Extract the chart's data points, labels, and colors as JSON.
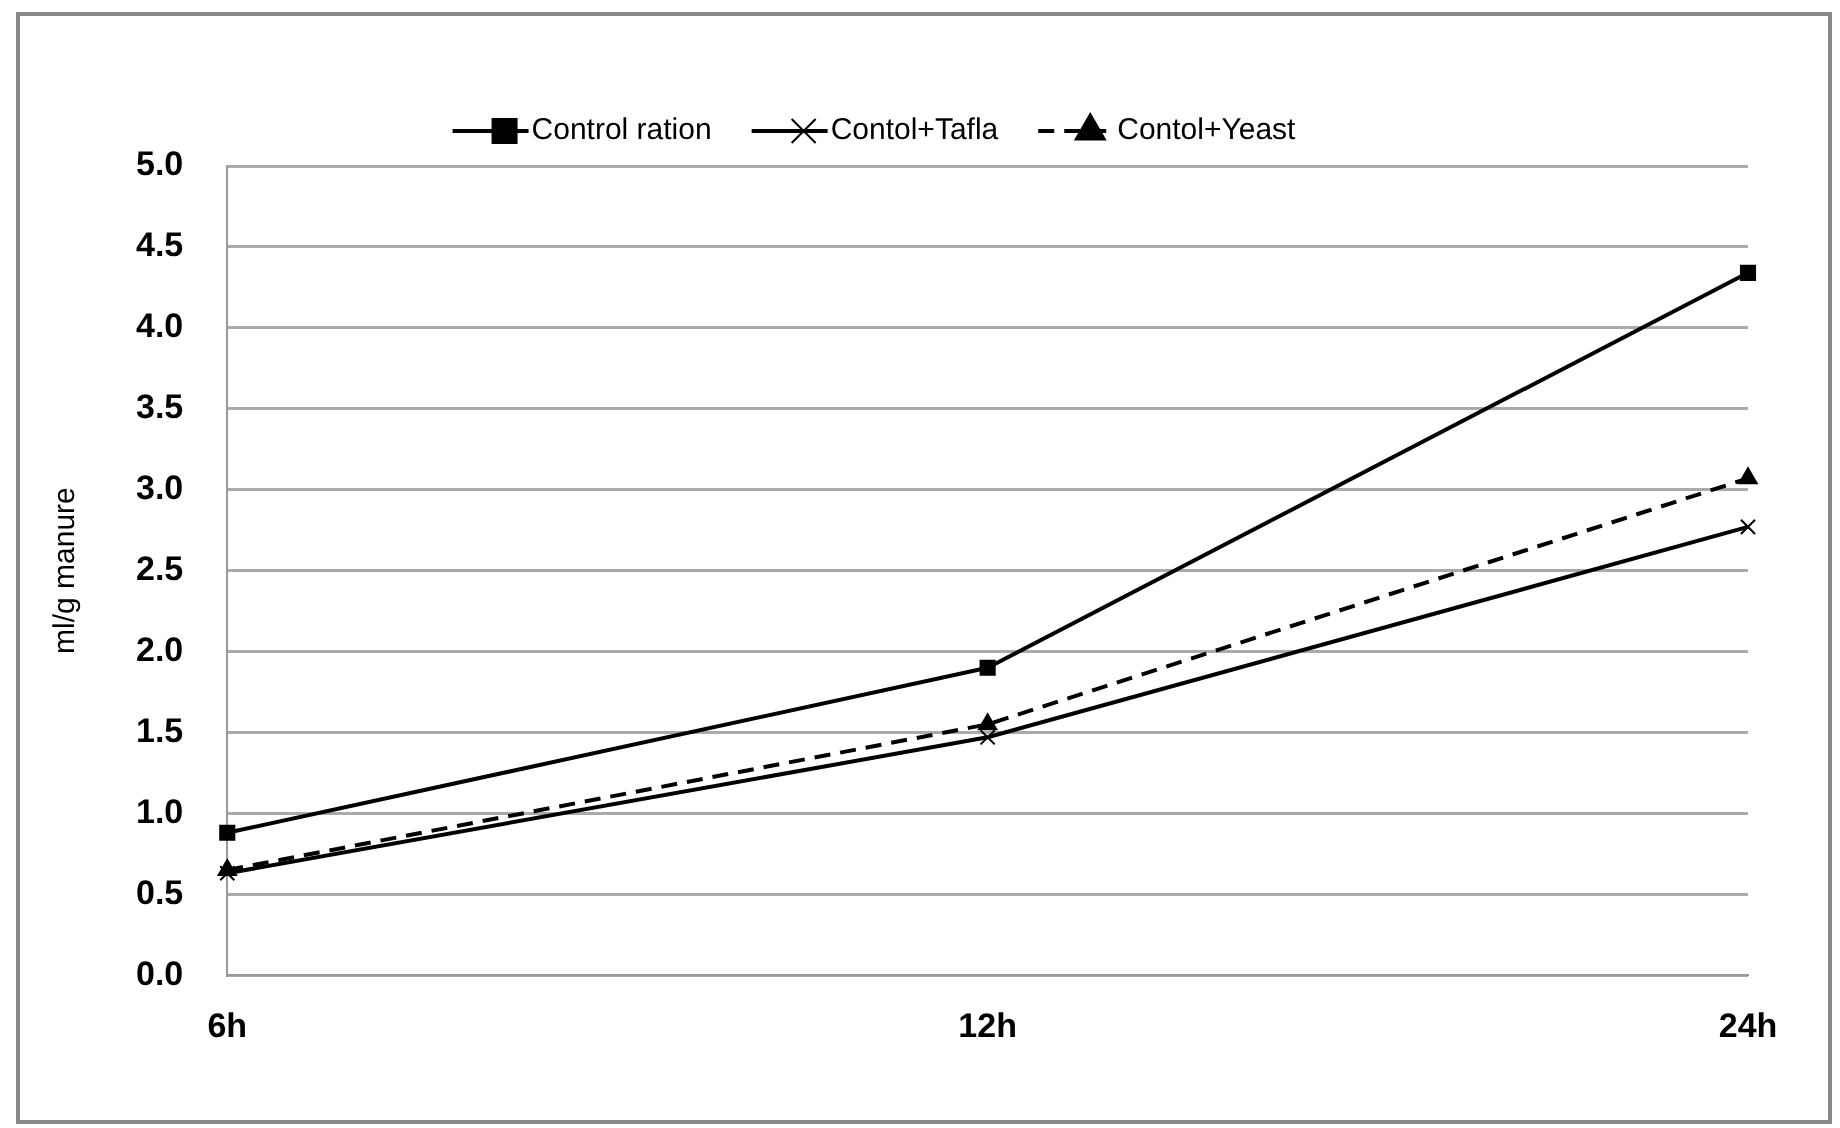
{
  "chart_data": {
    "type": "line",
    "ylabel": "ml/g manure",
    "categories": [
      "6h",
      "12h",
      "24h"
    ],
    "series": [
      {
        "name": "Control ration",
        "color": "#000000",
        "marker": "square",
        "line_style": "solid",
        "values": [
          0.88,
          1.9,
          4.34
        ]
      },
      {
        "name": "Contol+Tafla",
        "color": "#000000",
        "marker": "cross",
        "line_style": "solid",
        "values": [
          0.63,
          1.47,
          2.77
        ]
      },
      {
        "name": "Contol+Yeast",
        "color": "#000000",
        "marker": "triangle",
        "line_style": "dashed",
        "values": [
          0.65,
          1.55,
          3.07
        ]
      }
    ],
    "ylim": [
      0,
      5
    ],
    "yticks": [
      {
        "value": 0,
        "label": "0.0"
      },
      0.5,
      {
        "value": 1,
        "label": "1.0"
      },
      1.5,
      {
        "value": 2,
        "label": "2.0"
      },
      2.5,
      {
        "value": 3,
        "label": "3.0"
      },
      3.5,
      {
        "value": 4,
        "label": "4.0"
      },
      4.5,
      {
        "value": 5,
        "label": "5.0"
      }
    ],
    "grid": "y",
    "legend": "top"
  }
}
